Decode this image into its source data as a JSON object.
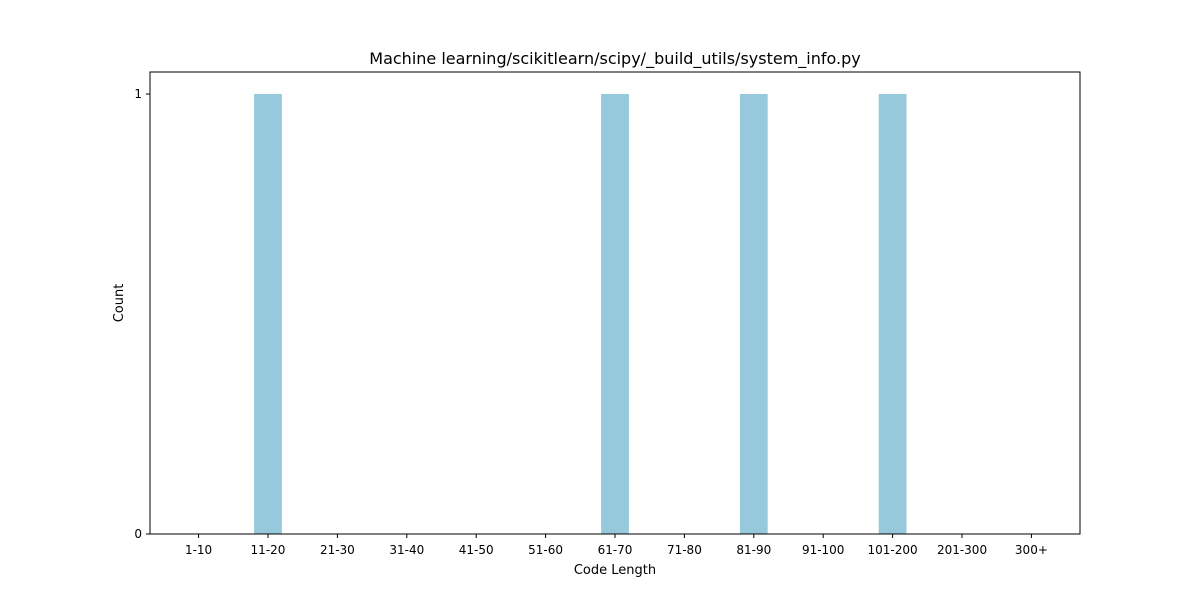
{
  "chart_data": {
    "type": "bar",
    "title": "Machine learning/scikitlearn/scipy/_build_utils/system_info.py",
    "xlabel": "Code Length",
    "ylabel": "Count",
    "categories": [
      "1-10",
      "11-20",
      "21-30",
      "31-40",
      "41-50",
      "51-60",
      "61-70",
      "71-80",
      "81-90",
      "91-100",
      "101-200",
      "201-300",
      "300+"
    ],
    "values": [
      0,
      1,
      0,
      0,
      0,
      0,
      1,
      0,
      1,
      0,
      1,
      0,
      0
    ],
    "ylim": [
      0,
      1.05
    ],
    "yticks": [
      0,
      1
    ],
    "bar_color": "#96c9dc",
    "grid": false
  }
}
